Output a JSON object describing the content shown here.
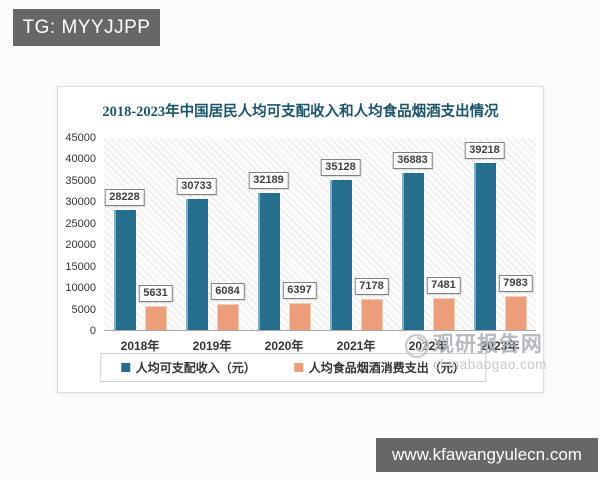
{
  "badges": {
    "tg": "TG: MYYJJPP",
    "url": "www.kfawangyulecn.com"
  },
  "chart_data": {
    "type": "bar",
    "title": "2018-2023年中国居民人均可支配收入和人均食品烟酒支出情况",
    "categories": [
      "2018年",
      "2019年",
      "2020年",
      "2021年",
      "2022年",
      "2023年"
    ],
    "series": [
      {
        "name": "人均可支配收入（元）",
        "color": "#256e8e",
        "values": [
          28228,
          30733,
          32189,
          35128,
          36883,
          39218
        ]
      },
      {
        "name": "人均食品烟酒消费支出（元）",
        "color": "#ec9e7b",
        "values": [
          5631,
          6084,
          6397,
          7178,
          7481,
          7983
        ]
      }
    ],
    "ylim": [
      0,
      45000
    ],
    "ytick_step": 5000,
    "yticks": [
      45000,
      40000,
      35000,
      30000,
      25000,
      20000,
      15000,
      10000,
      5000,
      0
    ],
    "grid": false,
    "data_labels": true,
    "legend_position": "bottom",
    "title_color": "#1c5469"
  },
  "watermark": {
    "cn": "观研报告网",
    "en": "chinabaogao.com"
  }
}
